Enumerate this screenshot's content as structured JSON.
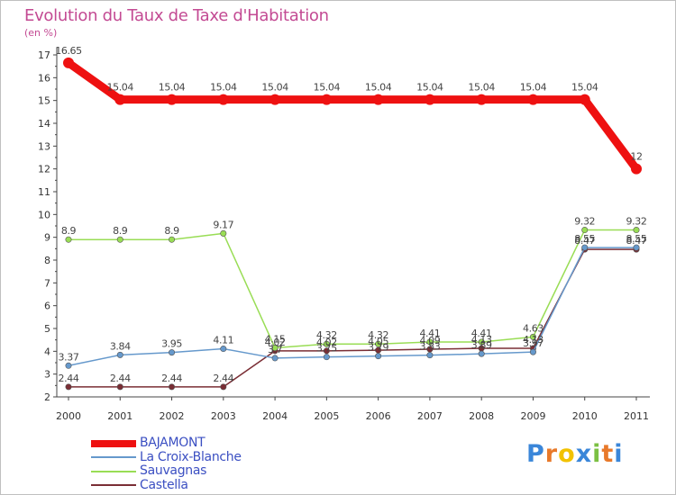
{
  "title": "Evolution du Taux de Taxe d'Habitation",
  "subtitle": "(en %)",
  "brand": {
    "text": "Proxiti",
    "letters": [
      "P",
      "r",
      "o",
      "x",
      "i",
      "t",
      "i"
    ],
    "colors": [
      "#3a86d9",
      "#e8792a",
      "#f2c200",
      "#3a86d9",
      "#7bc043",
      "#e8792a",
      "#3a86d9"
    ]
  },
  "chart_data": {
    "type": "line",
    "x": [
      "2000",
      "2001",
      "2002",
      "2003",
      "2004",
      "2005",
      "2006",
      "2007",
      "2008",
      "2009",
      "2010",
      "2011"
    ],
    "yticks": [
      "2",
      "3",
      "4",
      "5",
      "6",
      "7",
      "8",
      "9",
      "10",
      "11",
      "12",
      "13",
      "14",
      "15",
      "16",
      "17"
    ],
    "ylim": [
      2,
      17
    ],
    "grid": false,
    "legend_placement": "bottom-left",
    "series": [
      {
        "name": "BAJAMONT",
        "color": "#ee1111",
        "width": 9,
        "values": [
          16.65,
          15.04,
          15.04,
          15.04,
          15.04,
          15.04,
          15.04,
          15.04,
          15.04,
          15.04,
          15.04,
          12
        ],
        "labels": [
          "16.65",
          "15.04",
          "15.04",
          "15.04",
          "15.04",
          "15.04",
          "15.04",
          "15.04",
          "15.04",
          "15.04",
          "15.04",
          "12"
        ]
      },
      {
        "name": "La Croix-Blanche",
        "color": "#6699cc",
        "width": 1.5,
        "values": [
          3.37,
          3.84,
          3.95,
          4.11,
          3.7,
          3.75,
          3.79,
          3.83,
          3.89,
          3.97,
          8.55,
          8.55
        ],
        "labels": [
          "3.37",
          "3.84",
          "3.95",
          "4.11",
          "3.7",
          "3.75",
          "3.79",
          "3.83",
          "3.89",
          "3.97",
          "8.55",
          "8.55"
        ]
      },
      {
        "name": "Sauvagnas",
        "color": "#99dd55",
        "width": 1.5,
        "values": [
          8.9,
          8.9,
          8.9,
          9.17,
          4.15,
          4.32,
          4.32,
          4.41,
          4.41,
          4.63,
          9.32,
          9.32
        ],
        "labels": [
          "8.9",
          "8.9",
          "8.9",
          "9.17",
          "4.15",
          "4.32",
          "4.32",
          "4.41",
          "4.41",
          "4.63",
          "9.32",
          "9.32"
        ]
      },
      {
        "name": "Castella",
        "color": "#7a2e35",
        "width": 1.5,
        "values": [
          2.44,
          2.44,
          2.44,
          2.44,
          4.02,
          4.02,
          4.05,
          4.09,
          4.13,
          4.13,
          8.47,
          8.47
        ],
        "labels": [
          "2.44",
          "2.44",
          "2.44",
          "2.44",
          "4.02",
          "4.02",
          "4.05",
          "4.09",
          "4.13",
          "4.13",
          "8.47",
          "8.47"
        ]
      }
    ]
  }
}
